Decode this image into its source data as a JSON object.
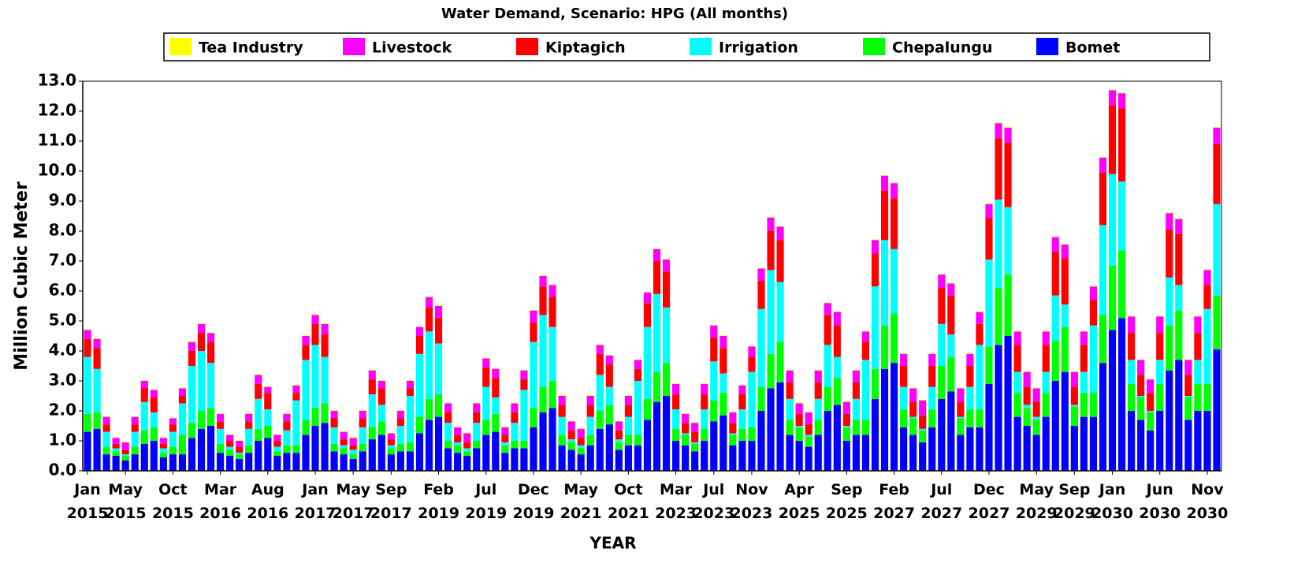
{
  "chart_data": {
    "type": "stacked-bar",
    "title": "Water Demand, Scenario: HPG (All months)",
    "x_label": "YEAR",
    "y_label": "Million Cubic Meter",
    "ylim": [
      0,
      13
    ],
    "yticks": [
      {
        "value": 0,
        "label": "0.0"
      },
      {
        "value": 1,
        "label": "1.0"
      },
      {
        "value": 2,
        "label": "2.0"
      },
      {
        "value": 3,
        "label": "3.0"
      },
      {
        "value": 4,
        "label": "4.0"
      },
      {
        "value": 5,
        "label": "5.0"
      },
      {
        "value": 6,
        "label": "6.0"
      },
      {
        "value": 7,
        "label": "7.0"
      },
      {
        "value": 8,
        "label": "8.0"
      },
      {
        "value": 9,
        "label": "9.0"
      },
      {
        "value": 10,
        "label": "10.0"
      },
      {
        "value": 11,
        "label": "11.0"
      },
      {
        "value": 12,
        "label": "12.0"
      },
      {
        "value": 13,
        "label": "13.0"
      }
    ],
    "grid": false,
    "categories": [
      "Jan 2015",
      null,
      null,
      null,
      "May 2015",
      null,
      null,
      null,
      null,
      "Oct 2015",
      null,
      null,
      null,
      null,
      "Mar 2016",
      null,
      null,
      null,
      null,
      "Aug 2016",
      null,
      null,
      null,
      null,
      "Jan 2017",
      null,
      null,
      null,
      "May 2017",
      null,
      null,
      null,
      "Sep 2017",
      null,
      null,
      null,
      null,
      "Feb 2019",
      null,
      null,
      null,
      null,
      "Jul 2019",
      null,
      null,
      null,
      null,
      "Dec 2019",
      null,
      null,
      null,
      null,
      "May 2021",
      null,
      null,
      null,
      null,
      "Oct 2021",
      null,
      null,
      null,
      null,
      "Mar 2023",
      null,
      null,
      null,
      "Jul 2023",
      null,
      null,
      null,
      "Nov 2023",
      null,
      null,
      null,
      null,
      "Apr 2025",
      null,
      null,
      null,
      null,
      "Sep 2025",
      null,
      null,
      null,
      null,
      "Feb 2027",
      null,
      null,
      null,
      null,
      "Jul 2027",
      null,
      null,
      null,
      null,
      "Dec 2027",
      null,
      null,
      null,
      null,
      "May 2029",
      null,
      null,
      null,
      "Sep 2029",
      null,
      null,
      null,
      "Jan 2030",
      null,
      null,
      null,
      null,
      "Jun 2030",
      null,
      null,
      null,
      null,
      "Nov 2030",
      null
    ],
    "series": [
      {
        "name": "Tea Industry",
        "color": "#ffff00",
        "values": [
          0.02,
          0.02,
          0.02,
          0.02,
          0.02,
          0.02,
          0.02,
          0.02,
          0.02,
          0.02,
          0.02,
          0.02,
          0.02,
          0.02,
          0.02,
          0.02,
          0.02,
          0.02,
          0.02,
          0.02,
          0.02,
          0.02,
          0.02,
          0.02,
          0.02,
          0.02,
          0.02,
          0.02,
          0.02,
          0.02,
          0.02,
          0.02,
          0.02,
          0.02,
          0.02,
          0.02,
          0.02,
          0.02,
          0.02,
          0.02,
          0.02,
          0.02,
          0.02,
          0.02,
          0.02,
          0.02,
          0.02,
          0.02,
          0.02,
          0.02,
          0.02,
          0.02,
          0.02,
          0.02,
          0.02,
          0.02,
          0.02,
          0.02,
          0.02,
          0.02,
          0.02,
          0.02,
          0.02,
          0.02,
          0.02,
          0.02,
          0.02,
          0.02,
          0.02,
          0.02,
          0.02,
          0.02,
          0.02,
          0.02,
          0.02,
          0.02,
          0.02,
          0.02,
          0.02,
          0.02,
          0.02,
          0.02,
          0.02,
          0.02,
          0.02,
          0.02,
          0.02,
          0.02,
          0.02,
          0.02,
          0.02,
          0.02,
          0.02,
          0.02,
          0.02,
          0.02,
          0.02,
          0.02,
          0.02,
          0.02,
          0.02,
          0.02,
          0.02,
          0.02,
          0.02,
          0.02,
          0.02,
          0.02,
          0.02,
          0.02,
          0.02,
          0.02,
          0.02,
          0.02,
          0.02,
          0.02,
          0.02,
          0.02,
          0.02,
          0.02
        ]
      },
      {
        "name": "Livestock",
        "color": "#ff00ff",
        "values": [
          0.3,
          0.3,
          0.25,
          0.2,
          0.25,
          0.25,
          0.25,
          0.25,
          0.2,
          0.2,
          0.25,
          0.3,
          0.3,
          0.3,
          0.25,
          0.2,
          0.2,
          0.25,
          0.3,
          0.2,
          0.2,
          0.25,
          0.25,
          0.3,
          0.3,
          0.35,
          0.25,
          0.25,
          0.25,
          0.25,
          0.3,
          0.25,
          0.2,
          0.25,
          0.25,
          0.3,
          0.35,
          0.4,
          0.3,
          0.25,
          0.3,
          0.3,
          0.3,
          0.3,
          0.25,
          0.3,
          0.3,
          0.4,
          0.35,
          0.4,
          0.3,
          0.3,
          0.3,
          0.3,
          0.3,
          0.3,
          0.3,
          0.3,
          0.3,
          0.35,
          0.4,
          0.4,
          0.35,
          0.3,
          0.3,
          0.35,
          0.4,
          0.4,
          0.35,
          0.3,
          0.35,
          0.4,
          0.45,
          0.45,
          0.4,
          0.35,
          0.4,
          0.4,
          0.4,
          0.45,
          0.4,
          0.4,
          0.35,
          0.45,
          0.5,
          0.5,
          0.4,
          0.45,
          0.5,
          0.4,
          0.45,
          0.4,
          0.45,
          0.4,
          0.4,
          0.45,
          0.5,
          0.5,
          0.45,
          0.5,
          0.45,
          0.45,
          0.5,
          0.45,
          0.5,
          0.45,
          0.45,
          0.5,
          0.5,
          0.5,
          0.55,
          0.5,
          0.45,
          0.55,
          0.55,
          0.5,
          0.5,
          0.55,
          0.5,
          0.55
        ]
      },
      {
        "name": "Kiptagich",
        "color": "#ff0000",
        "values": [
          0.6,
          0.7,
          0.25,
          0.15,
          0.15,
          0.25,
          0.45,
          0.5,
          0.15,
          0.25,
          0.25,
          0.5,
          0.6,
          0.7,
          0.25,
          0.2,
          0.2,
          0.25,
          0.5,
          0.55,
          0.2,
          0.3,
          0.25,
          0.5,
          0.7,
          0.75,
          0.3,
          0.2,
          0.15,
          0.3,
          0.5,
          0.55,
          0.2,
          0.25,
          0.25,
          0.6,
          0.8,
          0.85,
          0.35,
          0.25,
          0.2,
          0.35,
          0.65,
          0.65,
          0.25,
          0.35,
          0.35,
          0.65,
          0.95,
          1.0,
          0.4,
          0.3,
          0.25,
          0.4,
          0.7,
          0.75,
          0.3,
          0.4,
          0.4,
          0.8,
          1.1,
          1.2,
          0.5,
          0.35,
          0.35,
          0.5,
          0.8,
          0.85,
          0.35,
          0.5,
          0.5,
          0.95,
          1.3,
          1.4,
          0.55,
          0.4,
          0.35,
          0.55,
          1.0,
          1.05,
          0.4,
          0.55,
          0.6,
          1.1,
          1.65,
          1.7,
          0.7,
          0.5,
          0.45,
          0.7,
          1.2,
          1.3,
          0.5,
          0.7,
          0.7,
          1.4,
          2.05,
          2.15,
          0.9,
          0.6,
          0.5,
          0.9,
          1.45,
          1.55,
          0.6,
          0.9,
          0.85,
          1.75,
          2.3,
          2.45,
          0.9,
          0.7,
          0.6,
          0.9,
          1.6,
          1.7,
          0.7,
          0.9,
          0.8,
          2.0
        ]
      },
      {
        "name": "Irrigation",
        "color": "#00ffff",
        "values": [
          1.9,
          1.45,
          0.5,
          0.1,
          0.05,
          0.5,
          0.95,
          0.5,
          0.15,
          0.5,
          1.05,
          1.9,
          2.0,
          1.5,
          0.5,
          0.1,
          0.05,
          0.55,
          1.0,
          0.55,
          0.15,
          0.5,
          1.5,
          2.0,
          2.1,
          1.55,
          0.55,
          0.1,
          0.15,
          0.55,
          1.1,
          0.55,
          0.1,
          0.6,
          1.55,
          2.1,
          2.25,
          1.7,
          0.6,
          0.1,
          0.1,
          0.6,
          1.1,
          0.55,
          0.1,
          0.6,
          1.7,
          2.2,
          2.4,
          1.8,
          0.6,
          0.1,
          0.1,
          0.6,
          1.2,
          0.6,
          0.1,
          0.6,
          1.8,
          2.4,
          2.6,
          1.85,
          0.65,
          0.05,
          0.05,
          0.65,
          1.3,
          0.65,
          0.05,
          0.65,
          1.85,
          2.6,
          2.8,
          2.0,
          0.7,
          0.05,
          0.05,
          0.7,
          1.4,
          0.7,
          0.05,
          0.7,
          2.0,
          2.75,
          2.85,
          2.15,
          0.75,
          0.05,
          0.05,
          0.75,
          1.4,
          0.75,
          0.05,
          0.75,
          2.15,
          2.9,
          2.95,
          2.25,
          0.7,
          0.1,
          0.1,
          0.7,
          1.5,
          0.75,
          0.05,
          0.7,
          2.25,
          3.0,
          3.05,
          2.3,
          0.8,
          0.05,
          0.05,
          0.8,
          1.6,
          0.85,
          0.05,
          0.8,
          2.5,
          3.05
        ]
      },
      {
        "name": "Chepalungu",
        "color": "#00ff00",
        "values": [
          0.6,
          0.55,
          0.25,
          0.15,
          0.15,
          0.25,
          0.45,
          0.45,
          0.15,
          0.25,
          0.65,
          0.5,
          0.6,
          0.6,
          0.3,
          0.2,
          0.15,
          0.25,
          0.4,
          0.4,
          0.15,
          0.25,
          0.25,
          0.5,
          0.6,
          0.65,
          0.25,
          0.2,
          0.15,
          0.25,
          0.4,
          0.45,
          0.2,
          0.25,
          0.3,
          0.55,
          0.7,
          0.75,
          0.25,
          0.25,
          0.15,
          0.25,
          0.5,
          0.6,
          0.25,
          0.25,
          0.25,
          0.65,
          0.85,
          0.9,
          0.35,
          0.25,
          0.2,
          0.35,
          0.6,
          0.65,
          0.25,
          0.35,
          0.35,
          0.7,
          1.0,
          1.1,
          0.4,
          0.35,
          0.25,
          0.4,
          0.7,
          0.75,
          0.35,
          0.4,
          0.45,
          0.8,
          1.15,
          1.35,
          0.5,
          0.45,
          0.35,
          0.5,
          0.8,
          0.9,
          0.45,
          0.5,
          0.5,
          1.0,
          1.45,
          1.65,
          0.6,
          0.55,
          0.4,
          0.6,
          1.1,
          1.15,
          0.55,
          0.6,
          0.6,
          1.25,
          1.9,
          2.05,
          0.8,
          0.6,
          0.5,
          0.8,
          1.35,
          1.5,
          0.65,
          0.8,
          0.8,
          1.6,
          2.15,
          2.25,
          0.9,
          0.75,
          0.6,
          0.9,
          1.5,
          1.65,
          0.75,
          0.9,
          0.9,
          1.8
        ]
      },
      {
        "name": "Bomet",
        "color": "#0000ff",
        "values": [
          1.3,
          1.4,
          0.55,
          0.5,
          0.35,
          0.55,
          0.9,
          1.0,
          0.45,
          0.55,
          0.55,
          1.1,
          1.4,
          1.5,
          0.6,
          0.5,
          0.4,
          0.6,
          1.0,
          1.1,
          0.5,
          0.6,
          0.6,
          1.2,
          1.5,
          1.6,
          0.65,
          0.55,
          0.4,
          0.65,
          1.05,
          1.2,
          0.55,
          0.65,
          0.65,
          1.25,
          1.7,
          1.8,
          0.75,
          0.6,
          0.5,
          0.75,
          1.2,
          1.3,
          0.6,
          0.75,
          0.75,
          1.45,
          1.95,
          2.1,
          0.85,
          0.7,
          0.55,
          0.85,
          1.4,
          1.55,
          0.7,
          0.85,
          0.85,
          1.7,
          2.3,
          2.5,
          1.0,
          0.85,
          0.65,
          1.0,
          1.65,
          1.85,
          0.85,
          1.0,
          1.0,
          2.0,
          2.75,
          2.95,
          1.2,
          1.0,
          0.8,
          1.2,
          2.0,
          2.2,
          1.0,
          1.2,
          1.2,
          2.4,
          3.4,
          3.6,
          1.45,
          1.2,
          0.95,
          1.45,
          2.4,
          2.65,
          1.2,
          1.45,
          1.45,
          2.9,
          4.2,
          4.5,
          1.8,
          1.5,
          1.2,
          1.8,
          3.0,
          3.3,
          1.5,
          1.8,
          1.8,
          3.6,
          4.7,
          5.1,
          2.0,
          1.7,
          1.35,
          2.0,
          3.35,
          3.7,
          1.7,
          2.0,
          2.0,
          4.05
        ]
      }
    ]
  }
}
